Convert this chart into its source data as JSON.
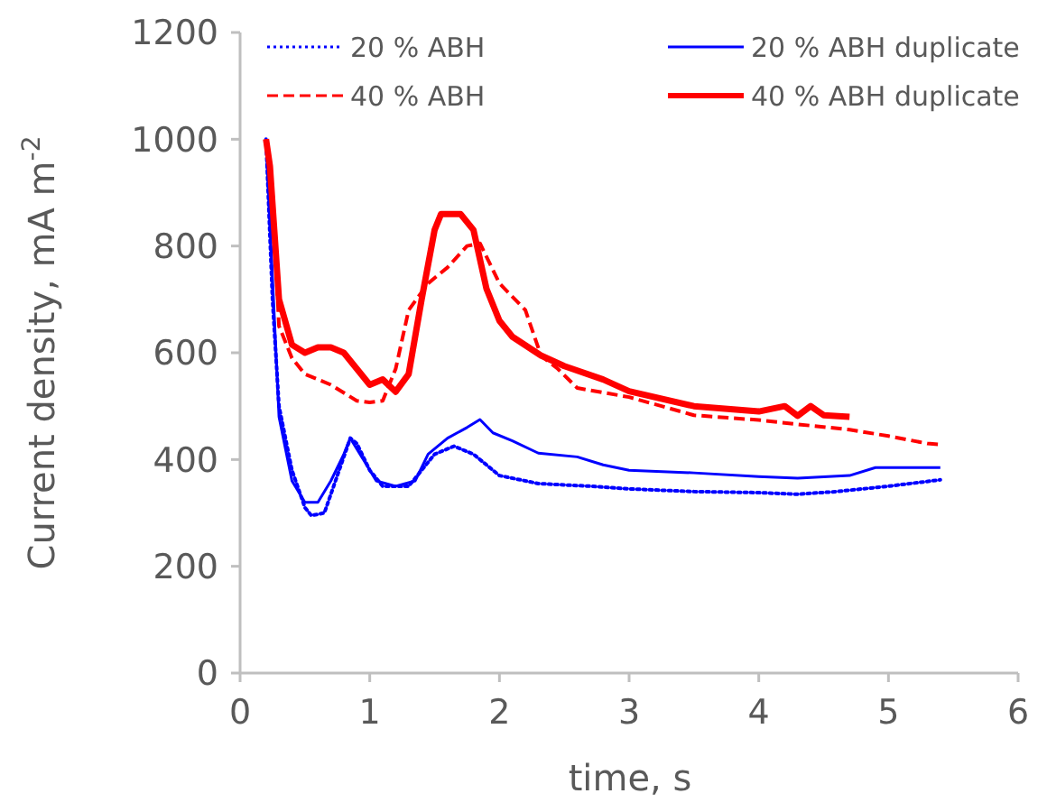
{
  "chart_data": {
    "type": "line",
    "xlabel": "time, s",
    "ylabel": "Current density, mA m$^{-2}$",
    "xlim": [
      0,
      6
    ],
    "xticks": [
      0,
      1,
      2,
      3,
      4,
      5,
      6
    ],
    "ylim": [
      0,
      1200
    ],
    "yticks": [
      0,
      200,
      400,
      600,
      800,
      1000,
      1200
    ],
    "grid": false,
    "legend": "top",
    "marker": "none",
    "series": [
      {
        "name": "20 % ABH",
        "color": "#0000ff",
        "line_style": "dotted",
        "x": [
          0.2,
          0.25,
          0.3,
          0.4,
          0.5,
          0.55,
          0.65,
          0.75,
          0.85,
          0.9,
          1.0,
          1.1,
          1.3,
          1.4,
          1.5,
          1.65,
          1.8,
          2.0,
          2.3,
          2.7,
          3.0,
          3.5,
          4.0,
          4.3,
          4.6,
          5.0,
          5.4
        ],
        "values": [
          1000,
          700,
          500,
          380,
          310,
          295,
          300,
          370,
          440,
          430,
          380,
          350,
          350,
          380,
          410,
          425,
          410,
          370,
          355,
          350,
          345,
          340,
          338,
          335,
          340,
          350,
          362
        ]
      },
      {
        "name": "20 % ABH duplicate",
        "color": "#0000ff",
        "line_style": "solid",
        "x": [
          0.2,
          0.3,
          0.4,
          0.5,
          0.6,
          0.7,
          0.8,
          0.85,
          0.95,
          1.05,
          1.2,
          1.35,
          1.45,
          1.6,
          1.75,
          1.85,
          1.95,
          2.1,
          2.3,
          2.6,
          2.8,
          3.0,
          3.5,
          4.0,
          4.3,
          4.7,
          4.9,
          5.4
        ],
        "values": [
          1000,
          480,
          360,
          320,
          320,
          360,
          410,
          440,
          400,
          360,
          350,
          360,
          410,
          440,
          460,
          475,
          450,
          435,
          412,
          405,
          390,
          380,
          375,
          368,
          365,
          370,
          385,
          385
        ]
      },
      {
        "name": "40 % ABH",
        "color": "#ff0000",
        "line_style": "dashed",
        "x": [
          0.2,
          0.25,
          0.3,
          0.4,
          0.5,
          0.7,
          0.9,
          1.0,
          1.1,
          1.2,
          1.3,
          1.45,
          1.6,
          1.75,
          1.85,
          2.0,
          2.2,
          2.32,
          2.45,
          2.6,
          3.0,
          3.5,
          4.0,
          4.3,
          4.7,
          5.0,
          5.3,
          5.4
        ],
        "values": [
          1000,
          900,
          650,
          590,
          560,
          540,
          510,
          507,
          510,
          570,
          680,
          730,
          760,
          800,
          805,
          730,
          680,
          595,
          570,
          534,
          517,
          483,
          474,
          466,
          456,
          444,
          430,
          428
        ]
      },
      {
        "name": "40 % ABH duplicate",
        "color": "#ff0000",
        "line_style": "solid",
        "x": [
          0.2,
          0.23,
          0.3,
          0.4,
          0.5,
          0.6,
          0.7,
          0.8,
          0.9,
          1.0,
          1.1,
          1.2,
          1.3,
          1.4,
          1.5,
          1.55,
          1.7,
          1.8,
          1.9,
          2.0,
          2.1,
          2.32,
          2.5,
          2.8,
          3.0,
          3.5,
          4.0,
          4.2,
          4.3,
          4.4,
          4.5,
          4.7
        ],
        "values": [
          1000,
          950,
          700,
          615,
          600,
          610,
          610,
          600,
          570,
          540,
          550,
          527,
          560,
          700,
          830,
          860,
          860,
          830,
          720,
          660,
          630,
          595,
          575,
          550,
          528,
          500,
          490,
          500,
          482,
          500,
          483,
          480
        ]
      }
    ]
  }
}
